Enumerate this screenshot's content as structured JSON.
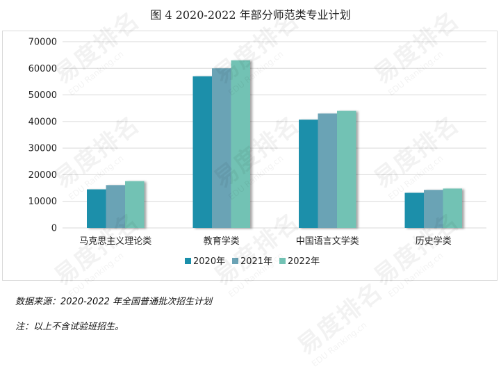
{
  "title": "图 4 2020-2022 年部分师范类专业计划",
  "source_note": "数据来源：2020-2022 年全国普通批次招生计划",
  "footnote": "注：以上不含试验班招生。",
  "watermark": {
    "brand": "易度排名",
    "domain": "EDU Ranking.cn"
  },
  "colors": {
    "s2020": "#1a8faa",
    "s2021": "#6ba3b5",
    "s2022": "#72c2b4",
    "grid": "#d9d9d9",
    "axis_text": "#222222"
  },
  "chart_data": {
    "type": "bar",
    "title": "图 4 2020-2022 年部分师范类专业计划",
    "categories": [
      "马克思主义理论类",
      "教育学类",
      "中国语言文学类",
      "历史学类"
    ],
    "series": [
      {
        "name": "2020年",
        "values": [
          14500,
          57000,
          40700,
          13200
        ]
      },
      {
        "name": "2021年",
        "values": [
          16100,
          60000,
          43000,
          14300
        ]
      },
      {
        "name": "2022年",
        "values": [
          17600,
          63000,
          44000,
          14800
        ]
      }
    ],
    "ylim": [
      0,
      70000
    ],
    "yticks": [
      "0",
      "10000",
      "20000",
      "30000",
      "40000",
      "50000",
      "60000",
      "70000"
    ],
    "grid": true,
    "legend_position": "bottom"
  }
}
